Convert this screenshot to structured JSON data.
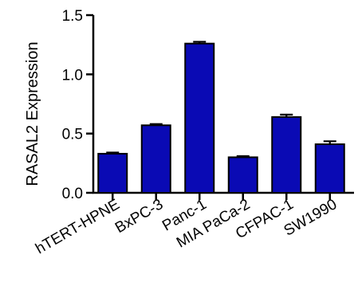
{
  "chart_data": {
    "type": "bar",
    "ylabel": "RASAL2  Expression",
    "xlabel": "",
    "title": "",
    "categories": [
      "hTERT-HPNE",
      "BxPC-3",
      "Panc-1",
      "MIA PaCa-2",
      "CFPAC-1",
      "SW1990"
    ],
    "values": [
      0.33,
      0.57,
      1.26,
      0.3,
      0.64,
      0.41
    ],
    "errors": [
      0.01,
      0.01,
      0.015,
      0.01,
      0.02,
      0.025
    ],
    "ylim": [
      0,
      1.5
    ],
    "yticks": [
      "0.0",
      "0.5",
      "1.0",
      "1.5"
    ],
    "ytick_values": [
      0.0,
      0.5,
      1.0,
      1.5
    ],
    "bar_color": "#0a0ab4",
    "grid": false,
    "legend": "none"
  }
}
